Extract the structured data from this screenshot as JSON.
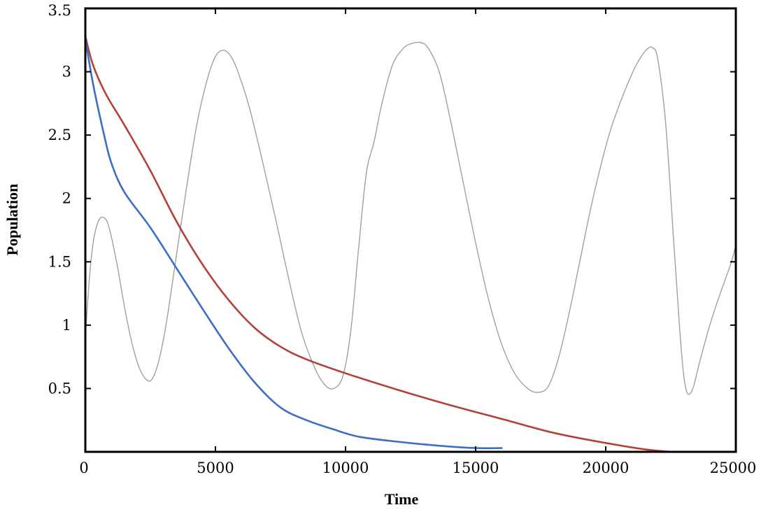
{
  "chart_data": {
    "type": "line",
    "title": "",
    "xlabel": "Time",
    "ylabel": "Population",
    "xlim": [
      0,
      25000
    ],
    "ylim": [
      0,
      3.5
    ],
    "x_ticks": [
      0,
      5000,
      10000,
      15000,
      20000,
      25000
    ],
    "x_tick_labels": [
      "0",
      "5000",
      "10000",
      "15000",
      "20000",
      "25000"
    ],
    "y_ticks": [
      0.5,
      1,
      1.5,
      2,
      2.5,
      3,
      3.5
    ],
    "y_tick_labels": [
      "0.5",
      "1",
      "1.5",
      "2",
      "2.5",
      "3",
      "3.5"
    ],
    "grid": false,
    "legend": "none",
    "series": [
      {
        "color": "#a0a0a0",
        "points": [
          [
            0,
            0.9
          ],
          [
            150,
            1.35
          ],
          [
            300,
            1.65
          ],
          [
            500,
            1.82
          ],
          [
            700,
            1.85
          ],
          [
            900,
            1.78
          ],
          [
            1200,
            1.5
          ],
          [
            1500,
            1.15
          ],
          [
            1800,
            0.85
          ],
          [
            2100,
            0.65
          ],
          [
            2350,
            0.57
          ],
          [
            2550,
            0.57
          ],
          [
            2800,
            0.7
          ],
          [
            3100,
            1.0
          ],
          [
            3500,
            1.55
          ],
          [
            3900,
            2.1
          ],
          [
            4300,
            2.6
          ],
          [
            4700,
            2.95
          ],
          [
            5000,
            3.12
          ],
          [
            5300,
            3.17
          ],
          [
            5600,
            3.12
          ],
          [
            5900,
            2.98
          ],
          [
            6300,
            2.72
          ],
          [
            6800,
            2.3
          ],
          [
            7300,
            1.85
          ],
          [
            7800,
            1.38
          ],
          [
            8300,
            0.95
          ],
          [
            8800,
            0.67
          ],
          [
            9200,
            0.53
          ],
          [
            9550,
            0.5
          ],
          [
            9900,
            0.6
          ],
          [
            10200,
            0.95
          ],
          [
            10500,
            1.6
          ],
          [
            10800,
            2.2
          ],
          [
            11100,
            2.45
          ],
          [
            11400,
            2.75
          ],
          [
            11800,
            3.05
          ],
          [
            12200,
            3.18
          ],
          [
            12500,
            3.22
          ],
          [
            12900,
            3.23
          ],
          [
            13200,
            3.18
          ],
          [
            13600,
            3.0
          ],
          [
            14000,
            2.65
          ],
          [
            14500,
            2.15
          ],
          [
            15000,
            1.65
          ],
          [
            15500,
            1.2
          ],
          [
            16000,
            0.85
          ],
          [
            16500,
            0.62
          ],
          [
            17000,
            0.5
          ],
          [
            17400,
            0.47
          ],
          [
            17800,
            0.52
          ],
          [
            18200,
            0.75
          ],
          [
            18600,
            1.1
          ],
          [
            19000,
            1.5
          ],
          [
            19400,
            1.9
          ],
          [
            19800,
            2.25
          ],
          [
            20200,
            2.55
          ],
          [
            20600,
            2.78
          ],
          [
            21000,
            2.98
          ],
          [
            21300,
            3.1
          ],
          [
            21600,
            3.18
          ],
          [
            21800,
            3.19
          ],
          [
            22000,
            3.1
          ],
          [
            22300,
            2.6
          ],
          [
            22600,
            1.7
          ],
          [
            22850,
            0.95
          ],
          [
            23000,
            0.6
          ],
          [
            23150,
            0.46
          ],
          [
            23350,
            0.5
          ],
          [
            23600,
            0.7
          ],
          [
            24000,
            1.0
          ],
          [
            24400,
            1.25
          ],
          [
            24800,
            1.48
          ],
          [
            25000,
            1.63
          ]
        ]
      },
      {
        "color": "#b5403a",
        "points": [
          [
            0,
            3.28
          ],
          [
            300,
            3.05
          ],
          [
            800,
            2.82
          ],
          [
            1500,
            2.58
          ],
          [
            2500,
            2.22
          ],
          [
            3500,
            1.82
          ],
          [
            4500,
            1.48
          ],
          [
            5500,
            1.2
          ],
          [
            6500,
            0.98
          ],
          [
            7500,
            0.83
          ],
          [
            8500,
            0.73
          ],
          [
            10000,
            0.62
          ],
          [
            12000,
            0.49
          ],
          [
            14000,
            0.37
          ],
          [
            16000,
            0.26
          ],
          [
            18000,
            0.15
          ],
          [
            20000,
            0.07
          ],
          [
            21500,
            0.02
          ],
          [
            22500,
            0.0
          ]
        ]
      },
      {
        "color": "#3c6ec8",
        "points": [
          [
            0,
            3.26
          ],
          [
            300,
            2.9
          ],
          [
            700,
            2.52
          ],
          [
            1000,
            2.28
          ],
          [
            1500,
            2.05
          ],
          [
            2500,
            1.77
          ],
          [
            3500,
            1.45
          ],
          [
            4500,
            1.13
          ],
          [
            5500,
            0.82
          ],
          [
            6500,
            0.55
          ],
          [
            7500,
            0.35
          ],
          [
            8500,
            0.25
          ],
          [
            9500,
            0.18
          ],
          [
            10500,
            0.12
          ],
          [
            12000,
            0.08
          ],
          [
            13500,
            0.05
          ],
          [
            15000,
            0.03
          ],
          [
            16000,
            0.03
          ]
        ]
      }
    ]
  }
}
